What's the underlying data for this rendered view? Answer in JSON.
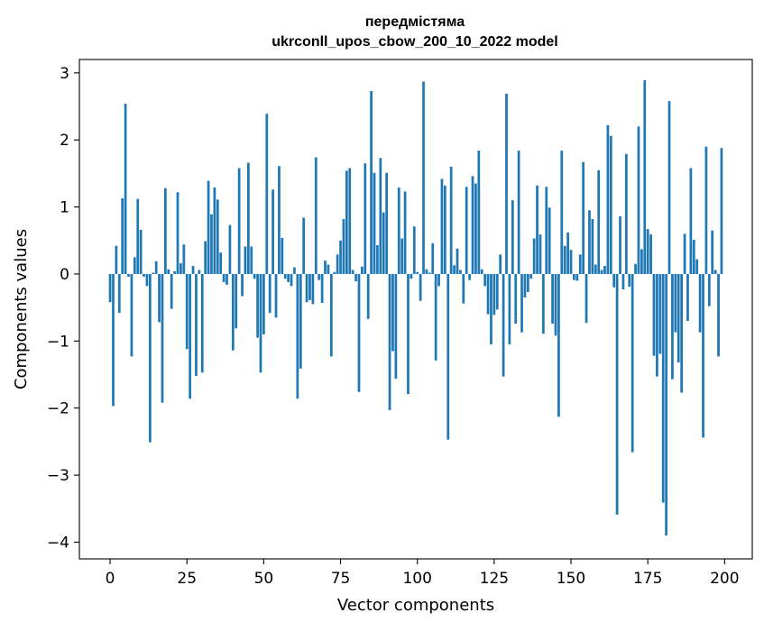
{
  "chart_data": {
    "type": "bar",
    "title": "передмістяма",
    "subtitle": "ukrconll_upos_cbow_200_10_2022 model",
    "xlabel": "Vector components",
    "ylabel": "Components values",
    "xlim": [
      -10,
      209
    ],
    "ylim": [
      -4.25,
      3.2
    ],
    "xticks": [
      0,
      25,
      50,
      75,
      100,
      125,
      150,
      175,
      200
    ],
    "yticks": [
      3,
      2,
      1,
      0,
      -1,
      -2,
      -3,
      -4
    ],
    "ytick_labels": [
      "3",
      "2",
      "1",
      "0",
      "−1",
      "−2",
      "−3",
      "−4"
    ],
    "bar_color": "#1f77b4",
    "grid": false,
    "values": [
      -0.42,
      -1.97,
      0.42,
      -0.58,
      1.13,
      2.54,
      -0.04,
      -1.23,
      0.25,
      1.12,
      0.66,
      -0.04,
      -0.18,
      -2.51,
      0.02,
      0.19,
      -0.72,
      -1.92,
      1.28,
      0.07,
      -0.52,
      0.04,
      1.22,
      0.16,
      0.44,
      -1.12,
      -1.86,
      0.12,
      -1.52,
      0.06,
      -1.47,
      0.49,
      1.39,
      0.89,
      1.29,
      1.11,
      0.32,
      -0.12,
      -0.16,
      0.73,
      -1.14,
      -0.81,
      1.58,
      -0.33,
      0.41,
      1.66,
      0.41,
      -0.07,
      -0.95,
      -1.47,
      -0.9,
      2.39,
      -0.58,
      1.26,
      -0.65,
      1.61,
      0.54,
      -0.07,
      -0.12,
      -0.18,
      0.1,
      -1.86,
      -1.41,
      0.84,
      -0.42,
      -0.39,
      -0.45,
      1.74,
      -0.09,
      -0.43,
      0.2,
      0.14,
      -1.23,
      0.03,
      0.29,
      0.5,
      0.82,
      1.54,
      1.58,
      0.06,
      -0.11,
      -1.76,
      0.11,
      1.65,
      -0.67,
      2.73,
      1.51,
      0.43,
      1.73,
      0.92,
      1.51,
      -2.03,
      -1.15,
      -1.56,
      1.29,
      0.53,
      1.23,
      -1.79,
      -0.07,
      0.71,
      0.03,
      -0.4,
      2.87,
      0.07,
      0.02,
      0.46,
      -1.29,
      -0.18,
      1.42,
      1.32,
      -2.47,
      1.6,
      0.13,
      0.38,
      0.06,
      -0.44,
      1.3,
      -0.09,
      1.46,
      1.35,
      1.84,
      0.07,
      -0.18,
      -0.6,
      -1.05,
      -0.61,
      -0.53,
      0.29,
      -1.53,
      2.69,
      -1.05,
      1.1,
      -0.74,
      1.84,
      -0.87,
      -0.35,
      -0.27,
      -0.07,
      0.53,
      1.32,
      0.59,
      -0.89,
      1.3,
      0.99,
      -0.74,
      -0.92,
      -2.13,
      1.84,
      0.42,
      0.62,
      0.36,
      -0.09,
      -0.1,
      0.29,
      1.67,
      -0.73,
      0.95,
      0.82,
      0.14,
      1.55,
      0.06,
      0.12,
      2.22,
      2.06,
      -0.2,
      -3.59,
      0.86,
      -0.23,
      1.79,
      -0.19,
      -2.66,
      0.15,
      2.2,
      0.37,
      2.89,
      0.67,
      0.59,
      -1.22,
      -1.53,
      -1.19,
      -3.41,
      -3.9,
      2.58,
      -1.57,
      -0.87,
      -1.32,
      -1.77,
      0.6,
      -0.7,
      1.58,
      0.51,
      0.22,
      -0.87,
      -2.44,
      1.9,
      -0.48,
      0.65,
      0.06,
      -1.23,
      1.88
    ]
  }
}
